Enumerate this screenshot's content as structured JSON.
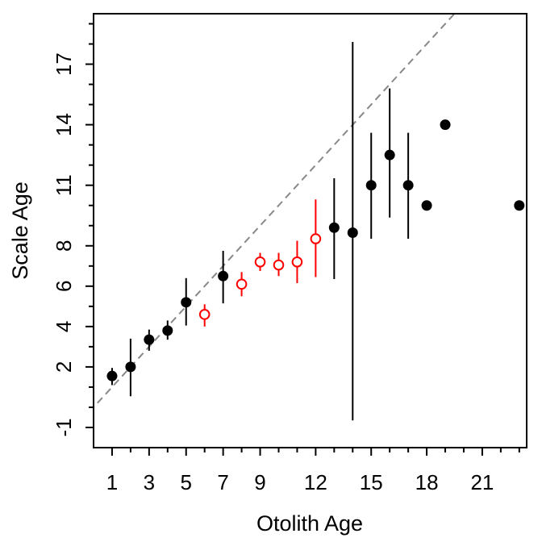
{
  "chart_data": {
    "type": "scatter",
    "xlabel": "Otolith Age",
    "ylabel": "Scale Age",
    "xlim": [
      0.0,
      23.4
    ],
    "ylim": [
      -2.0,
      19.5
    ],
    "x_ticks": [
      1,
      2,
      3,
      4,
      5,
      6,
      7,
      8,
      9,
      10,
      11,
      12,
      13,
      14,
      15,
      16,
      17,
      18,
      19,
      20,
      21,
      22,
      23
    ],
    "x_tick_labels": [
      "1",
      "",
      "3",
      "",
      "5",
      "",
      "7",
      "",
      "9",
      "",
      "",
      "12",
      "",
      "",
      "15",
      "",
      "",
      "18",
      "",
      "",
      "21",
      "",
      ""
    ],
    "y_ticks": [
      -1,
      0,
      1,
      2,
      3,
      4,
      5,
      6,
      7,
      8,
      9,
      10,
      11,
      12,
      13,
      14,
      15,
      16,
      17,
      18,
      19
    ],
    "y_tick_labels": [
      "-1",
      "",
      "",
      "2",
      "",
      "4",
      "",
      "6",
      "",
      "8",
      "",
      "",
      "11",
      "",
      "",
      "14",
      "",
      "",
      "17",
      "",
      ""
    ],
    "reference_line": {
      "type": "1:1",
      "color": "#888888",
      "style": "dashed"
    },
    "colors": {
      "significant": "#ff0000",
      "normal": "#000000"
    },
    "points": [
      {
        "x": 1,
        "y": 1.55,
        "lo": 1.1,
        "hi": 1.95,
        "significant": false
      },
      {
        "x": 2,
        "y": 2.0,
        "lo": 0.55,
        "hi": 3.4,
        "significant": false
      },
      {
        "x": 3,
        "y": 3.35,
        "lo": 2.8,
        "hi": 3.85,
        "significant": false
      },
      {
        "x": 4,
        "y": 3.8,
        "lo": 3.35,
        "hi": 4.3,
        "significant": false
      },
      {
        "x": 5,
        "y": 5.2,
        "lo": 4.05,
        "hi": 6.4,
        "significant": false
      },
      {
        "x": 6,
        "y": 4.6,
        "lo": 4.0,
        "hi": 5.1,
        "significant": true
      },
      {
        "x": 7,
        "y": 6.5,
        "lo": 5.15,
        "hi": 7.75,
        "significant": false
      },
      {
        "x": 8,
        "y": 6.1,
        "lo": 5.5,
        "hi": 6.7,
        "significant": true
      },
      {
        "x": 9,
        "y": 7.2,
        "lo": 6.75,
        "hi": 7.65,
        "significant": true
      },
      {
        "x": 10,
        "y": 7.05,
        "lo": 6.5,
        "hi": 7.65,
        "significant": true
      },
      {
        "x": 11,
        "y": 7.2,
        "lo": 6.15,
        "hi": 8.25,
        "significant": true
      },
      {
        "x": 12,
        "y": 8.35,
        "lo": 6.45,
        "hi": 10.3,
        "significant": true
      },
      {
        "x": 13,
        "y": 8.9,
        "lo": 6.35,
        "hi": 11.35,
        "significant": false
      },
      {
        "x": 14,
        "y": 8.65,
        "lo": -0.65,
        "hi": 18.1,
        "significant": false
      },
      {
        "x": 15,
        "y": 11.0,
        "lo": 8.35,
        "hi": 13.6,
        "significant": false
      },
      {
        "x": 16,
        "y": 12.5,
        "lo": 9.4,
        "hi": 15.8,
        "significant": false
      },
      {
        "x": 17,
        "y": 11.0,
        "lo": 8.35,
        "hi": 13.6,
        "significant": false
      },
      {
        "x": 18,
        "y": 10.0,
        "lo": null,
        "hi": null,
        "significant": false
      },
      {
        "x": 19,
        "y": 14.0,
        "lo": null,
        "hi": null,
        "significant": false
      },
      {
        "x": 23,
        "y": 10.0,
        "lo": null,
        "hi": null,
        "significant": false
      }
    ]
  }
}
